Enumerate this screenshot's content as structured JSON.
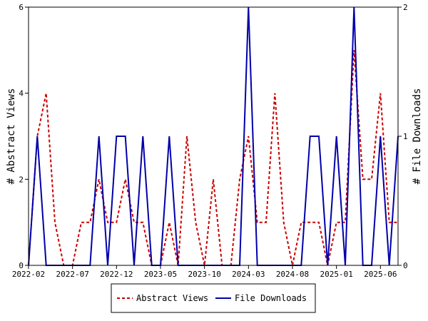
{
  "chart_data": {
    "type": "line",
    "title": "",
    "xlabel": "",
    "ylabel": "# Abstract Views",
    "y2label": "# File Downloads",
    "ylim": [
      0,
      6
    ],
    "y2lim": [
      0,
      2
    ],
    "yticks": [
      "0",
      "2",
      "4",
      "6"
    ],
    "y2ticks": [
      "0",
      "1",
      "2"
    ],
    "xticks": [
      "2022-02",
      "2022-07",
      "2022-12",
      "2023-05",
      "2023-10",
      "2024-03",
      "2024-08",
      "2025-01",
      "2025-06"
    ],
    "x": [
      "2022-02",
      "2022-03",
      "2022-04",
      "2022-05",
      "2022-06",
      "2022-07",
      "2022-08",
      "2022-09",
      "2022-10",
      "2022-11",
      "2022-12",
      "2023-01",
      "2023-02",
      "2023-03",
      "2023-04",
      "2023-05",
      "2023-06",
      "2023-07",
      "2023-08",
      "2023-09",
      "2023-10",
      "2023-11",
      "2023-12",
      "2024-01",
      "2024-02",
      "2024-03",
      "2024-04",
      "2024-05",
      "2024-06",
      "2024-07",
      "2024-08",
      "2024-09",
      "2024-10",
      "2024-11",
      "2024-12",
      "2025-01",
      "2025-02",
      "2025-03",
      "2025-04",
      "2025-05",
      "2025-06",
      "2025-07",
      "2025-08"
    ],
    "grid": false,
    "legend": "bottom",
    "series": [
      {
        "name": "Abstract Views",
        "axis": "left",
        "color": "#cc0000",
        "style": "dashed",
        "values": [
          0,
          3,
          4,
          1,
          0,
          0,
          1,
          1,
          2,
          1,
          1,
          2,
          1,
          1,
          0,
          0,
          1,
          0,
          3,
          1,
          0,
          2,
          0,
          0,
          2,
          3,
          1,
          1,
          4,
          1,
          0,
          1,
          1,
          1,
          0,
          1,
          1,
          5,
          2,
          2,
          4,
          1,
          1
        ]
      },
      {
        "name": "File Downloads",
        "axis": "right",
        "color": "#0000aa",
        "style": "solid",
        "values": [
          0,
          1,
          0,
          0,
          0,
          0,
          0,
          0,
          1,
          0,
          1,
          1,
          0,
          1,
          0,
          0,
          1,
          0,
          0,
          0,
          0,
          0,
          0,
          0,
          0,
          2,
          0,
          0,
          0,
          0,
          0,
          0,
          1,
          1,
          0,
          1,
          0,
          2,
          0,
          0,
          1,
          0,
          1
        ]
      }
    ]
  }
}
